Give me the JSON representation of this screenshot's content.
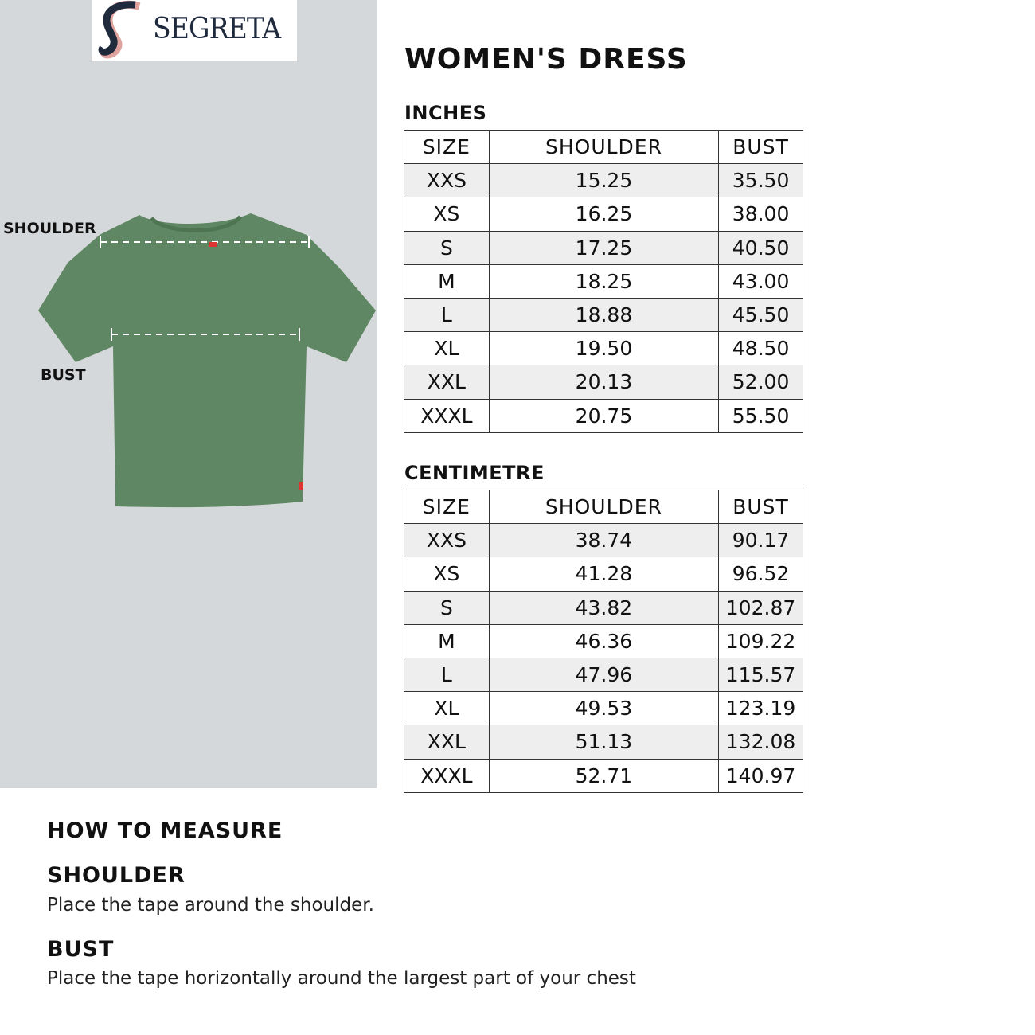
{
  "brand": {
    "name": "SEGRETA",
    "colors": {
      "navy": "#1f2a3d",
      "pink": "#e0a29c"
    }
  },
  "figure": {
    "shoulder_label": "SHOULDER",
    "bust_label": "BUST",
    "shirt_color": "#5f8763"
  },
  "title": "WOMEN'S DRESS",
  "tables": [
    {
      "heading": "INCHES",
      "columns": [
        "SIZE",
        "SHOULDER",
        "BUST"
      ],
      "rows": [
        [
          "XXS",
          "15.25",
          "35.50"
        ],
        [
          "XS",
          "16.25",
          "38.00"
        ],
        [
          "S",
          "17.25",
          "40.50"
        ],
        [
          "M",
          "18.25",
          "43.00"
        ],
        [
          "L",
          "18.88",
          "45.50"
        ],
        [
          "XL",
          "19.50",
          "48.50"
        ],
        [
          "XXL",
          "20.13",
          "52.00"
        ],
        [
          "XXXL",
          "20.75",
          "55.50"
        ]
      ]
    },
    {
      "heading": "CENTIMETRE",
      "columns": [
        "SIZE",
        "SHOULDER",
        "BUST"
      ],
      "rows": [
        [
          "XXS",
          "38.74",
          "90.17"
        ],
        [
          "XS",
          "41.28",
          "96.52"
        ],
        [
          "S",
          "43.82",
          "102.87"
        ],
        [
          "M",
          "46.36",
          "109.22"
        ],
        [
          "L",
          "47.96",
          "115.57"
        ],
        [
          "XL",
          "49.53",
          "123.19"
        ],
        [
          "XXL",
          "51.13",
          "132.08"
        ],
        [
          "XXXL",
          "52.71",
          "140.97"
        ]
      ]
    }
  ],
  "how_to": {
    "heading": "HOW TO MEASURE",
    "items": [
      {
        "title": "SHOULDER",
        "text": "Place the tape around the shoulder."
      },
      {
        "title": "BUST",
        "text": "Place the tape horizontally around the largest part of your chest"
      }
    ]
  }
}
